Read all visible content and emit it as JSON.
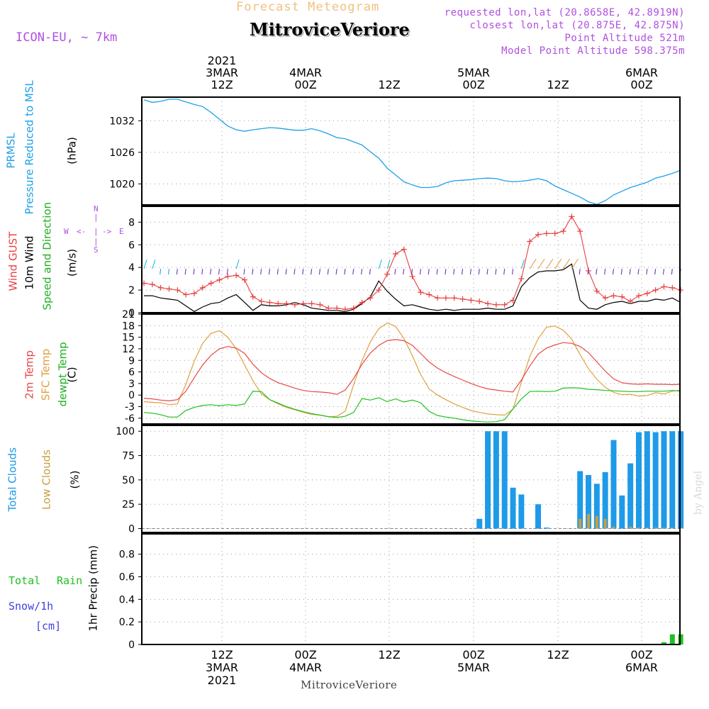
{
  "header": {
    "title_top": "Forecast Meteogram",
    "title_main": "MitroviceVeriore",
    "model": "ICON-EU, ~ 7km",
    "requested": "requested lon,lat (20.8658E, 42.8919N)",
    "closest": "closest lon,lat (20.875E, 42.875N)",
    "point_alt": "Point Altitude 521m",
    "model_alt": "Model Point Altitude 598.375m"
  },
  "time_axis": {
    "top_labels": [
      {
        "lines": [
          "2021",
          "3MAR",
          "12Z"
        ]
      },
      {
        "lines": [
          "4MAR",
          "00Z"
        ]
      },
      {
        "lines": [
          "12Z"
        ]
      },
      {
        "lines": [
          "5MAR",
          "00Z"
        ]
      },
      {
        "lines": [
          "12Z"
        ]
      },
      {
        "lines": [
          "6MAR",
          "00Z"
        ]
      }
    ],
    "bottom_labels": [
      {
        "lines": [
          "12Z",
          "3MAR",
          "2021"
        ]
      },
      {
        "lines": [
          "00Z",
          "4MAR"
        ]
      },
      {
        "lines": [
          "12Z"
        ]
      },
      {
        "lines": [
          "00Z",
          "5MAR"
        ]
      },
      {
        "lines": [
          "12Z"
        ]
      },
      {
        "lines": [
          "00Z",
          "6MAR"
        ]
      }
    ],
    "footer": "MitroviceVeriore",
    "watermark": "by Angel"
  },
  "panel_labels": {
    "p1": {
      "name1": "PRMSL",
      "name2": "Pressure Reduced to MSL",
      "unit": "(hPa)"
    },
    "p2": {
      "gust": "Wind GUST",
      "wind": "10m Wind",
      "speed": "Speed and Direction",
      "unit": "(m/s)",
      "compass_n": "N",
      "compass_s": "S",
      "compass_w": "W",
      "compass_e": "E"
    },
    "p3": {
      "t2m": "2m Temp",
      "sfc": "SFC Temp",
      "dew": "dewpt Temp",
      "unit": "(C)"
    },
    "p4": {
      "total": "Total Clouds",
      "low": "Low Clouds",
      "unit": "(%)"
    },
    "p5": {
      "total": "Total",
      "rain": "Rain",
      "snow": "Snow/1h",
      "cm": "[cm]",
      "unit": "1hr Precip (mm)"
    }
  },
  "colors": {
    "pressure": "#1ea0e6",
    "gust": "#e84040",
    "wind": "#000000",
    "t2m": "#e84848",
    "sfc": "#e0a040",
    "dew": "#20c020",
    "total_cloud": "#1e9ae8",
    "low_cloud": "#c8a040",
    "rain": "#20c020",
    "snow": "#4040e0",
    "purple": "#b050e0",
    "header_orange": "#f0c080"
  },
  "chart_data": [
    {
      "type": "line",
      "title": "PRMSL Pressure Reduced to MSL",
      "ylabel": "(hPa)",
      "x_hours_from_start": [
        0,
        1,
        2,
        3,
        4,
        5,
        6,
        7,
        8,
        9,
        10,
        11,
        12,
        13,
        14,
        15,
        16,
        17,
        18,
        19,
        20,
        21,
        22,
        23,
        24,
        25,
        26,
        27,
        28,
        29,
        30,
        31,
        32,
        33,
        34,
        35,
        36,
        37,
        38,
        39,
        40,
        41,
        42,
        43,
        44,
        45,
        46,
        47,
        48,
        49,
        50,
        51,
        52,
        53,
        54,
        55,
        56,
        57,
        58,
        59,
        60,
        61,
        62,
        63,
        64
      ],
      "ylim": [
        1016.0,
        1036.5
      ],
      "yticks": [
        1020,
        1026,
        1032
      ],
      "series": [
        {
          "name": "PRMSL",
          "values": [
            1036.0,
            1035.5,
            1035.7,
            1036.1,
            1036.1,
            1035.6,
            1035.1,
            1034.7,
            1033.6,
            1032.3,
            1031.0,
            1030.3,
            1030.0,
            1030.3,
            1030.5,
            1030.7,
            1030.6,
            1030.4,
            1030.2,
            1030.2,
            1030.5,
            1030.1,
            1029.5,
            1028.8,
            1028.6,
            1028.0,
            1027.4,
            1026.1,
            1024.9,
            1023.0,
            1021.7,
            1020.4,
            1019.8,
            1019.3,
            1019.3,
            1019.5,
            1020.2,
            1020.6,
            1020.7,
            1020.8,
            1021.0,
            1021.1,
            1021.0,
            1020.6,
            1020.4,
            1020.5,
            1020.7,
            1021.0,
            1020.6,
            1019.6,
            1018.9,
            1018.2,
            1017.5,
            1016.6,
            1016.1,
            1016.8,
            1017.9,
            1018.6,
            1019.3,
            1019.8,
            1020.3,
            1021.1,
            1021.5,
            1022.0,
            1022.6
          ]
        }
      ]
    },
    {
      "type": "line",
      "title": "Wind GUST / 10m Wind Speed and Direction",
      "ylabel": "(m/s)",
      "x_hours_from_start": [
        0,
        1,
        2,
        3,
        4,
        5,
        6,
        7,
        8,
        9,
        10,
        11,
        12,
        13,
        14,
        15,
        16,
        17,
        18,
        19,
        20,
        21,
        22,
        23,
        24,
        25,
        26,
        27,
        28,
        29,
        30,
        31,
        32,
        33,
        34,
        35,
        36,
        37,
        38,
        39,
        40,
        41,
        42,
        43,
        44,
        45,
        46,
        47,
        48,
        49,
        50,
        51,
        52,
        53,
        54,
        55,
        56,
        57,
        58,
        59,
        60,
        61,
        62,
        63,
        64
      ],
      "ylim": [
        0,
        9.4
      ],
      "yticks": [
        0,
        2,
        4,
        6,
        8
      ],
      "series": [
        {
          "name": "Wind GUST",
          "values": [
            2.6,
            2.5,
            2.2,
            2.1,
            2.0,
            1.6,
            1.7,
            2.2,
            2.6,
            2.9,
            3.2,
            3.3,
            2.9,
            1.4,
            1.0,
            0.9,
            0.8,
            0.8,
            0.7,
            0.8,
            0.8,
            0.7,
            0.4,
            0.4,
            0.3,
            0.4,
            0.9,
            1.3,
            2.0,
            3.4,
            5.2,
            5.6,
            3.2,
            1.8,
            1.6,
            1.3,
            1.3,
            1.3,
            1.2,
            1.1,
            1.0,
            0.8,
            0.7,
            0.7,
            1.1,
            3.0,
            6.3,
            6.9,
            7.0,
            7.0,
            7.2,
            8.5,
            7.2,
            3.7,
            1.9,
            1.3,
            1.5,
            1.4,
            1.0,
            1.5,
            1.7,
            2.0,
            2.3,
            2.2,
            2.0
          ]
        },
        {
          "name": "10m Wind",
          "values": [
            1.5,
            1.5,
            1.3,
            1.2,
            1.1,
            0.6,
            0.1,
            0.5,
            0.8,
            0.9,
            1.3,
            1.6,
            0.9,
            0.2,
            0.7,
            0.6,
            0.6,
            0.7,
            0.9,
            0.7,
            0.4,
            0.3,
            0.2,
            0.2,
            0.1,
            0.3,
            0.8,
            1.4,
            2.8,
            1.9,
            1.2,
            0.6,
            0.7,
            0.5,
            0.3,
            0.2,
            0.3,
            0.2,
            0.3,
            0.3,
            0.3,
            0.4,
            0.3,
            0.3,
            0.6,
            2.3,
            3.1,
            3.6,
            3.7,
            3.7,
            3.8,
            4.3,
            1.1,
            0.4,
            0.3,
            0.7,
            0.9,
            1.0,
            0.8,
            1.0,
            1.0,
            1.2,
            1.1,
            1.3,
            0.9
          ]
        }
      ]
    },
    {
      "type": "line",
      "title": "2m Temp / SFC Temp / dewpt Temp",
      "ylabel": "(C)",
      "x_hours_from_start": [
        0,
        1,
        2,
        3,
        4,
        5,
        6,
        7,
        8,
        9,
        10,
        11,
        12,
        13,
        14,
        15,
        16,
        17,
        18,
        19,
        20,
        21,
        22,
        23,
        24,
        25,
        26,
        27,
        28,
        29,
        30,
        31,
        32,
        33,
        34,
        35,
        36,
        37,
        38,
        39,
        40,
        41,
        42,
        43,
        44,
        45,
        46,
        47,
        48,
        49,
        50,
        51,
        52,
        53,
        54,
        55,
        56,
        57,
        58,
        59,
        60,
        61,
        62,
        63,
        64
      ],
      "ylim": [
        -7.5,
        21
      ],
      "yticks": [
        -6,
        -3,
        0,
        3,
        6,
        9,
        12,
        15,
        18,
        21
      ],
      "series": [
        {
          "name": "2m Temp",
          "values": [
            -0.8,
            -1.0,
            -1.3,
            -1.5,
            -1.2,
            1.0,
            4.5,
            7.8,
            10.3,
            12.0,
            12.6,
            12.2,
            10.8,
            8.0,
            5.8,
            4.3,
            3.2,
            2.5,
            1.8,
            1.2,
            0.9,
            0.8,
            0.6,
            0.2,
            1.3,
            4.3,
            8.0,
            10.9,
            12.9,
            14.1,
            14.4,
            14.1,
            12.9,
            10.8,
            8.6,
            7.0,
            5.8,
            4.8,
            3.9,
            3.0,
            2.2,
            1.6,
            1.3,
            1.0,
            0.8,
            3.9,
            7.5,
            10.6,
            12.2,
            13.0,
            13.6,
            13.4,
            12.6,
            11.0,
            8.6,
            6.2,
            4.2,
            3.2,
            2.9,
            2.8,
            2.9,
            2.8,
            2.8,
            2.7,
            2.8
          ]
        },
        {
          "name": "SFC Temp",
          "values": [
            -1.7,
            -1.9,
            -2.0,
            -2.5,
            -2.3,
            2.8,
            8.8,
            13.4,
            16.0,
            16.7,
            15.0,
            12.0,
            7.8,
            3.7,
            0.3,
            -1.2,
            -2.3,
            -3.2,
            -3.8,
            -4.5,
            -5.0,
            -5.2,
            -5.6,
            -5.5,
            -4.2,
            2.7,
            9.0,
            13.8,
            17.2,
            18.7,
            17.8,
            14.7,
            10.2,
            5.3,
            1.6,
            0.0,
            -1.2,
            -2.3,
            -3.2,
            -4.0,
            -4.5,
            -4.9,
            -5.1,
            -5.2,
            -3.7,
            3.3,
            10.0,
            14.6,
            17.6,
            17.9,
            16.8,
            14.5,
            10.5,
            6.8,
            4.1,
            2.0,
            0.7,
            0.1,
            0.2,
            -0.3,
            -0.1,
            0.6,
            0.3,
            1.0,
            1.3
          ]
        },
        {
          "name": "dewpt Temp",
          "values": [
            -4.5,
            -4.7,
            -5.1,
            -5.7,
            -5.7,
            -4.0,
            -3.2,
            -2.7,
            -2.5,
            -2.8,
            -2.5,
            -2.7,
            -2.3,
            1.0,
            0.9,
            -1.2,
            -2.1,
            -3.0,
            -3.7,
            -4.3,
            -4.8,
            -5.2,
            -5.6,
            -5.8,
            -5.5,
            -4.5,
            -0.9,
            -1.3,
            -0.7,
            -1.7,
            -1.0,
            -1.8,
            -1.3,
            -2.0,
            -4.2,
            -5.3,
            -5.7,
            -6.0,
            -6.4,
            -6.7,
            -6.9,
            -7.0,
            -6.9,
            -6.4,
            -3.6,
            -1.0,
            0.9,
            1.0,
            0.9,
            1.0,
            1.8,
            1.9,
            1.8,
            1.5,
            1.4,
            1.2,
            1.1,
            1.0,
            0.9,
            0.9,
            1.0,
            1.0,
            1.0,
            1.2,
            1.0
          ]
        }
      ]
    },
    {
      "type": "bar",
      "title": "Total Clouds / Low Clouds",
      "ylabel": "(%)",
      "x_hours_from_start": [
        0,
        1,
        2,
        3,
        4,
        5,
        6,
        7,
        8,
        9,
        10,
        11,
        12,
        13,
        14,
        15,
        16,
        17,
        18,
        19,
        20,
        21,
        22,
        23,
        24,
        25,
        26,
        27,
        28,
        29,
        30,
        31,
        32,
        33,
        34,
        35,
        36,
        37,
        38,
        39,
        40,
        41,
        42,
        43,
        44,
        45,
        46,
        47,
        48,
        49,
        50,
        51,
        52,
        53,
        54,
        55,
        56,
        57,
        58,
        59,
        60,
        61,
        62,
        63,
        64
      ],
      "ylim": [
        -4,
        106
      ],
      "yticks": [
        0,
        25,
        50,
        75,
        100
      ],
      "series": [
        {
          "name": "Total Clouds",
          "values": [
            0,
            0,
            0,
            0,
            0,
            0,
            0,
            0,
            0,
            0,
            0,
            0,
            0,
            0,
            0,
            0,
            0,
            0,
            0,
            0,
            0,
            0,
            0,
            0,
            0,
            0,
            0,
            0,
            0,
            0,
            0,
            0,
            0,
            0,
            0,
            0,
            0,
            0,
            0,
            0,
            10,
            100,
            100,
            100,
            42,
            35,
            0,
            25,
            1,
            0,
            0,
            0,
            59,
            55,
            46,
            58,
            91,
            34,
            67,
            99,
            100,
            99,
            100,
            100,
            100
          ]
        },
        {
          "name": "Low Clouds",
          "values": [
            0,
            0,
            0,
            0,
            0,
            0,
            0,
            0,
            0,
            0,
            0,
            0,
            0,
            0,
            0,
            0,
            0,
            0,
            0,
            0,
            0,
            0,
            0,
            0,
            0,
            0,
            0,
            0,
            0,
            0,
            0,
            0,
            0,
            0,
            0,
            0,
            0,
            0,
            0,
            0,
            0,
            0,
            0,
            0,
            0,
            0,
            0,
            0,
            0,
            0,
            0,
            0,
            10,
            15,
            13,
            10,
            2,
            0,
            2,
            1,
            1,
            1,
            1,
            1,
            1
          ]
        }
      ]
    },
    {
      "type": "bar",
      "title": "1hr Precip",
      "ylabel": "1hr Precip (mm)",
      "x_hours_from_start": [
        0,
        1,
        2,
        3,
        4,
        5,
        6,
        7,
        8,
        9,
        10,
        11,
        12,
        13,
        14,
        15,
        16,
        17,
        18,
        19,
        20,
        21,
        22,
        23,
        24,
        25,
        26,
        27,
        28,
        29,
        30,
        31,
        32,
        33,
        34,
        35,
        36,
        37,
        38,
        39,
        40,
        41,
        42,
        43,
        44,
        45,
        46,
        47,
        48,
        49,
        50,
        51,
        52,
        53,
        54,
        55,
        56,
        57,
        58,
        59,
        60,
        61,
        62,
        63,
        64
      ],
      "ylim": [
        0,
        0.98
      ],
      "yticks": [
        0,
        0.2,
        0.4,
        0.6,
        0.8
      ],
      "series": [
        {
          "name": "Total Rain",
          "values": [
            0,
            0,
            0,
            0,
            0,
            0,
            0,
            0,
            0,
            0,
            0,
            0,
            0,
            0,
            0,
            0,
            0,
            0,
            0,
            0,
            0,
            0,
            0,
            0,
            0,
            0,
            0,
            0,
            0,
            0,
            0,
            0,
            0,
            0,
            0,
            0,
            0,
            0,
            0,
            0,
            0,
            0,
            0,
            0,
            0,
            0,
            0,
            0,
            0,
            0,
            0,
            0,
            0,
            0,
            0,
            0,
            0,
            0,
            0,
            0,
            0,
            0,
            0.02,
            0.09,
            0.09
          ]
        }
      ]
    }
  ]
}
